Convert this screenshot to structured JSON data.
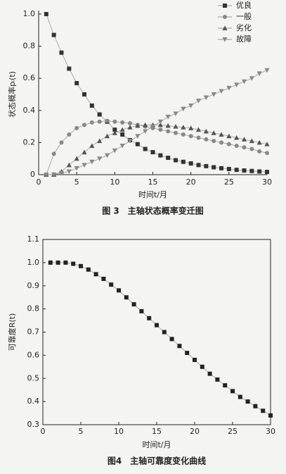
{
  "chart_data": [
    {
      "type": "line",
      "caption": "图 3　主轴状态概率变迁图",
      "xlabel": "时间t/月",
      "ylabel": "状态概率pᵢ(t)",
      "x": [
        1,
        2,
        3,
        4,
        5,
        6,
        7,
        8,
        9,
        10,
        11,
        12,
        13,
        14,
        15,
        16,
        17,
        18,
        19,
        20,
        21,
        22,
        23,
        24,
        25,
        26,
        27,
        28,
        29,
        30
      ],
      "series": [
        {
          "name": "优良",
          "color": "#333333",
          "marker": "square",
          "values": [
            1.0,
            0.87,
            0.76,
            0.66,
            0.57,
            0.5,
            0.43,
            0.375,
            0.33,
            0.28,
            0.25,
            0.215,
            0.19,
            0.16,
            0.14,
            0.12,
            0.105,
            0.09,
            0.08,
            0.07,
            0.06,
            0.053,
            0.046,
            0.04,
            0.035,
            0.03,
            0.026,
            0.023,
            0.02,
            0.017
          ]
        },
        {
          "name": "一般",
          "color": "#888888",
          "marker": "circle",
          "values": [
            0,
            0.13,
            0.2,
            0.25,
            0.29,
            0.31,
            0.325,
            0.33,
            0.335,
            0.33,
            0.325,
            0.32,
            0.31,
            0.3,
            0.29,
            0.28,
            0.27,
            0.26,
            0.25,
            0.24,
            0.23,
            0.22,
            0.21,
            0.2,
            0.19,
            0.18,
            0.17,
            0.16,
            0.145,
            0.135
          ]
        },
        {
          "name": "劣化",
          "color": "#555555",
          "marker": "triangle-up",
          "values": [
            0,
            0,
            0.02,
            0.06,
            0.1,
            0.14,
            0.18,
            0.21,
            0.24,
            0.26,
            0.28,
            0.295,
            0.305,
            0.31,
            0.31,
            0.31,
            0.305,
            0.3,
            0.295,
            0.29,
            0.28,
            0.27,
            0.26,
            0.25,
            0.24,
            0.23,
            0.22,
            0.21,
            0.2,
            0.19
          ]
        },
        {
          "name": "故障",
          "color": "#888888",
          "marker": "triangle-down",
          "values": [
            0,
            0,
            0.01,
            0.02,
            0.04,
            0.06,
            0.08,
            0.1,
            0.12,
            0.15,
            0.18,
            0.21,
            0.24,
            0.27,
            0.3,
            0.33,
            0.36,
            0.38,
            0.41,
            0.43,
            0.46,
            0.48,
            0.5,
            0.52,
            0.54,
            0.56,
            0.58,
            0.6,
            0.63,
            0.65
          ]
        }
      ],
      "xlim": [
        0,
        30
      ],
      "xticks": [
        0,
        5,
        10,
        15,
        20,
        25,
        30
      ],
      "ylim": [
        0,
        1
      ],
      "yticks": [
        0,
        0.2,
        0.4,
        0.6,
        0.8,
        {
          "value": 1,
          "label": "1.0"
        }
      ],
      "legend": "upper right",
      "frame": false
    },
    {
      "type": "line",
      "caption": "图4　主轴可靠度变化曲线",
      "xlabel": "时间t/月",
      "ylabel": "可靠度R(t)",
      "x": [
        1,
        2,
        3,
        4,
        5,
        6,
        7,
        8,
        9,
        10,
        11,
        12,
        13,
        14,
        15,
        16,
        17,
        18,
        19,
        20,
        21,
        22,
        23,
        24,
        25,
        26,
        27,
        28,
        29,
        30
      ],
      "values": [
        1.0,
        1.0,
        1.0,
        0.995,
        0.985,
        0.97,
        0.95,
        0.93,
        0.905,
        0.88,
        0.85,
        0.82,
        0.79,
        0.76,
        0.73,
        0.7,
        0.67,
        0.64,
        0.61,
        0.58,
        0.55,
        0.52,
        0.495,
        0.47,
        0.445,
        0.42,
        0.4,
        0.38,
        0.36,
        0.34
      ],
      "color": "#222222",
      "marker": "square",
      "xlim": [
        0,
        30
      ],
      "xticks": [
        0,
        5,
        10,
        15,
        20,
        25,
        30
      ],
      "ylim": [
        0.3,
        1.1
      ],
      "yticks": [
        0.3,
        0.4,
        0.5,
        0.6,
        0.7,
        0.8,
        0.9,
        {
          "value": 1,
          "label": "1.0"
        },
        1.1
      ],
      "frame": true
    }
  ]
}
